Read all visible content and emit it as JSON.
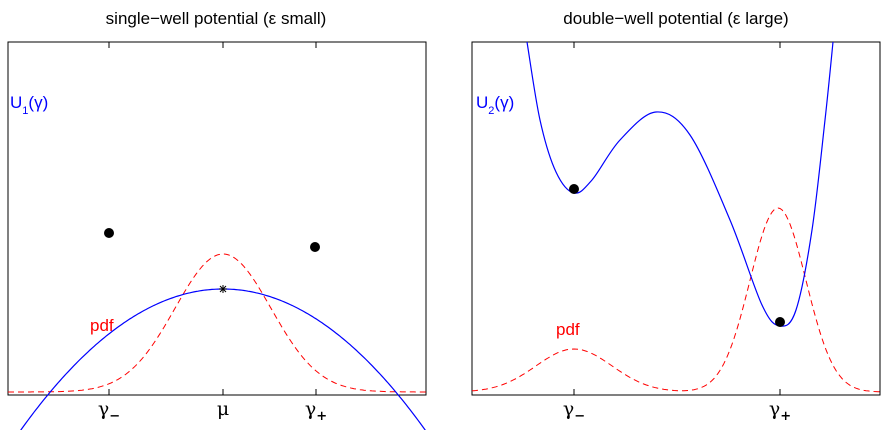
{
  "panels": [
    {
      "title": "single−well potential (ε small)",
      "potential_label": "U",
      "potential_subscript": "1",
      "potential_arg": "(γ)",
      "pdf_label": "pdf",
      "ticks": [
        {
          "symbol": "γ",
          "sub": "−"
        },
        {
          "symbol": "μ",
          "sub": ""
        },
        {
          "symbol": "γ",
          "sub": "+"
        }
      ]
    },
    {
      "title": "double−well potential (ε large)",
      "potential_label": "U",
      "potential_subscript": "2",
      "potential_arg": "(γ)",
      "pdf_label": "pdf",
      "ticks": [
        {
          "symbol": "γ",
          "sub": "−"
        },
        {
          "symbol": "γ",
          "sub": "+"
        }
      ]
    }
  ],
  "colors": {
    "potential": "#0000ff",
    "pdf": "#ff0000",
    "markers": "#000000",
    "axes": "#000000"
  }
}
